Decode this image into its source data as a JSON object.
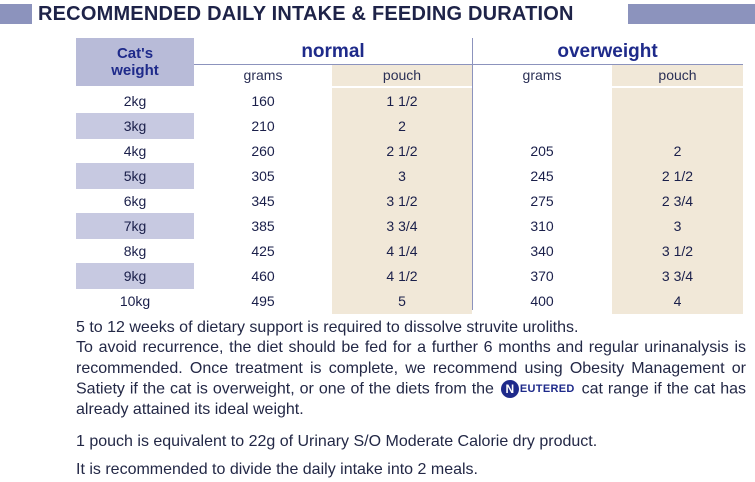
{
  "header": {
    "title": "RECOMMENDED DAILY INTAKE & FEEDING DURATION"
  },
  "table": {
    "weight_header_line1": "Cat's",
    "weight_header_line2": "weight",
    "group_normal": "normal",
    "group_overweight": "overweight",
    "sub_grams": "grams",
    "sub_pouch": "pouch",
    "rows": [
      {
        "weight": "2kg",
        "n_grams": "160",
        "n_pouch": "1 1/2",
        "o_grams": "",
        "o_pouch": ""
      },
      {
        "weight": "3kg",
        "n_grams": "210",
        "n_pouch": "2",
        "o_grams": "",
        "o_pouch": ""
      },
      {
        "weight": "4kg",
        "n_grams": "260",
        "n_pouch": "2 1/2",
        "o_grams": "205",
        "o_pouch": "2"
      },
      {
        "weight": "5kg",
        "n_grams": "305",
        "n_pouch": "3",
        "o_grams": "245",
        "o_pouch": "2 1/2"
      },
      {
        "weight": "6kg",
        "n_grams": "345",
        "n_pouch": "3 1/2",
        "o_grams": "275",
        "o_pouch": "2 3/4"
      },
      {
        "weight": "7kg",
        "n_grams": "385",
        "n_pouch": "3 3/4",
        "o_grams": "310",
        "o_pouch": "3"
      },
      {
        "weight": "8kg",
        "n_grams": "425",
        "n_pouch": "4 1/4",
        "o_grams": "340",
        "o_pouch": "3 1/2"
      },
      {
        "weight": "9kg",
        "n_grams": "460",
        "n_pouch": "4 1/2",
        "o_grams": "370",
        "o_pouch": "3 3/4"
      },
      {
        "weight": "10kg",
        "n_grams": "495",
        "n_pouch": "5",
        "o_grams": "400",
        "o_pouch": "4"
      }
    ]
  },
  "text": {
    "p1": "5 to 12 weeks of dietary support is required to dissolve struvite uroliths.",
    "p2_before": "To avoid recurrence, the diet should be fed for a further 6 months and regular urinanalysis is recommended. Once treatment is complete, we recommend using Obesity Management or Satiety if the cat is overweight, or one of the diets from the",
    "p2_logo": "EUTERED",
    "p2_logo_letter": "N",
    "p2_after": "cat range if the cat has already attained its ideal weight.",
    "p3": "1 pouch is equivalent to 22g of Urinary S/O Moderate Calorie dry product.",
    "p4": "It is recommended to divide the daily intake into 2 meals."
  },
  "colors": {
    "header_band": "#8c93bd",
    "weight_shade": "#c7c9e1",
    "pouch_shade": "#f1e8d8",
    "title_blue": "#1e2a8a"
  }
}
